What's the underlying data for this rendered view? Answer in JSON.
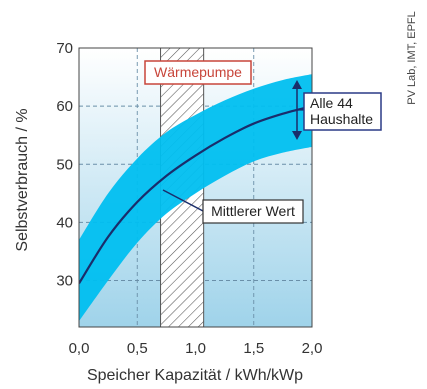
{
  "chart_data": {
    "type": "area",
    "xlabel": "Speicher Kapazität / kWh/kWp",
    "ylabel": "Selbstverbrauch / %",
    "xlim": [
      0.0,
      2.0
    ],
    "ylim": [
      22,
      70
    ],
    "x_ticks": [
      "0,0",
      "0,5",
      "1,0",
      "1,5",
      "2,0"
    ],
    "y_ticks": [
      "30",
      "40",
      "50",
      "60",
      "70"
    ],
    "x_tick_values": [
      0.0,
      0.5,
      1.0,
      1.5,
      2.0
    ],
    "y_tick_values": [
      30,
      40,
      50,
      60,
      70
    ],
    "grid": true,
    "series": [
      {
        "name": "Mittlerer Wert",
        "x": [
          0.0,
          0.25,
          0.5,
          0.75,
          1.0,
          1.25,
          1.5,
          1.75,
          2.0
        ],
        "values": [
          29.5,
          37.5,
          43.5,
          48.0,
          51.5,
          54.5,
          57.0,
          58.7,
          60.0
        ]
      },
      {
        "name": "Alle 44 Haushalte",
        "x": [
          0.0,
          0.25,
          0.5,
          0.75,
          1.0,
          1.25,
          1.5,
          1.75,
          2.0
        ],
        "lower": [
          23.0,
          30.0,
          36.5,
          41.5,
          45.0,
          48.0,
          50.5,
          52.0,
          53.0
        ],
        "upper": [
          37.0,
          45.0,
          51.0,
          55.5,
          58.5,
          61.0,
          63.0,
          64.5,
          65.5
        ]
      }
    ],
    "region": {
      "label": "Wärmepumpe",
      "x_range": [
        0.7,
        1.07
      ]
    },
    "annotations": {
      "range_label": "Alle 44 Haushalte",
      "mean_label": "Mittlerer Wert",
      "region_label": "Wärmepumpe"
    },
    "colors": {
      "band": "#00bff0",
      "mean_line": "#1a2d6b",
      "background_top": "#ffffff",
      "background_bottom": "#9fd3ea",
      "region_box_border": "#c8453a",
      "range_box_border": "#2a3a86"
    }
  },
  "credit": "PV Lab, IMT, EPFL"
}
